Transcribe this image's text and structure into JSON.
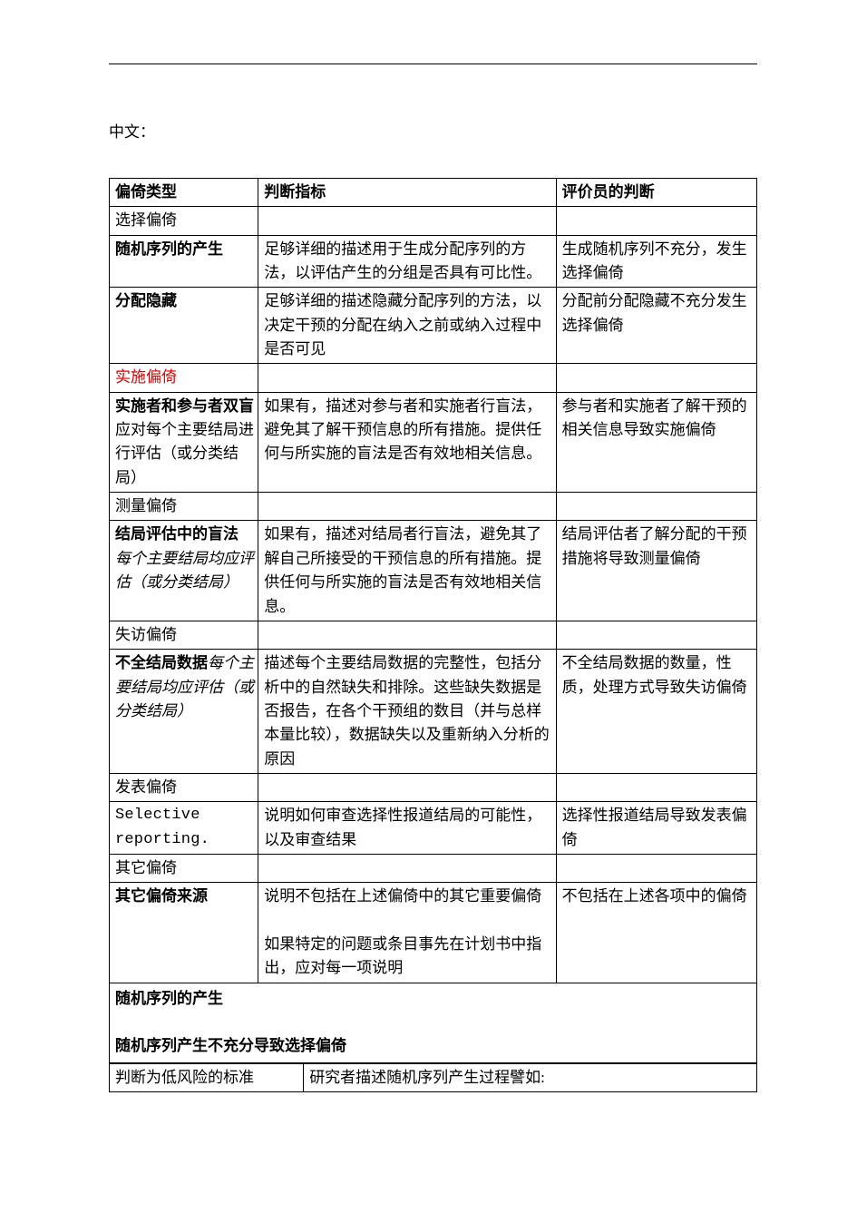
{
  "intro": "中文：",
  "table1": {
    "header": {
      "c1": "偏倚类型",
      "c2": "判断指标",
      "c3": "评价员的判断"
    },
    "r_select": "选择偏倚",
    "r_rand": {
      "c1": "随机序列的产生",
      "c2": "足够详细的描述用于生成分配序列的方法，以评估产生的分组是否具有可比性。",
      "c3": "生成随机序列不充分，发生选择偏倚"
    },
    "r_alloc": {
      "c1": "分配隐藏",
      "c2": "足够详细的描述隐藏分配序列的方法，以决定干预的分配在纳入之前或纳入过程中是否可见",
      "c3": "分配前分配隐藏不充分发生选择偏倚"
    },
    "r_perf": "实施偏倚",
    "r_blind1": {
      "c1a": "实施者和参与者双盲",
      "c1b": " 应对每个主要结局进行评估（或分类结局）",
      "c2": "如果有，描述对参与者和实施者行盲法，避免其了解干预信息的所有措施。提供任何与所实施的盲法是否有效地相关信息。",
      "c3": "参与者和实施者了解干预的相关信息导致实施偏倚"
    },
    "r_detect": "测量偏倚",
    "r_blind2": {
      "c1a": "结局评估中的盲法",
      "c1b": " 每个主要结局均应评估（或分类结局）",
      "c2": "如果有，描述对结局者行盲法，避免其了解自己所接受的干预信息的所有措施。提供任何与所实施的盲法是否有效地相关信息。",
      "c3": "结局评估者了解分配的干预措施将导致测量偏倚"
    },
    "r_attr": "失访偏倚",
    "r_incomp": {
      "c1a": "不全结局数据",
      "c1b": "每个主要结局均应评估（或分类结局）",
      "c2": "描述每个主要结局数据的完整性，包括分析中的自然缺失和排除。这些缺失数据是否报告，在各个干预组的数目（并与总样本量比较），数据缺失以及重新纳入分析的原因",
      "c3": "不全结局数据的数量，性质，处理方式导致失访偏倚"
    },
    "r_report": "发表偏倚",
    "r_selective": {
      "c1a": "Selective",
      "c1b": "reporting.",
      "c2": "说明如何审查选择性报道结局的可能性，以及审查结果",
      "c3": "选择性报道结局导致发表偏倚"
    },
    "r_other": "其它偏倚",
    "r_other_src": {
      "c1": "其它偏倚来源",
      "c2a": "说明不包括在上述偏倚中的其它重要偏倚",
      "c2b": "如果特定的问题或条目事先在计划书中指出，应对每一项说明",
      "c3": "不包括在上述各项中的偏倚"
    },
    "full_heading1": "随机序列的产生",
    "full_heading2": "随机序列产生不充分导致选择偏倚"
  },
  "table2": {
    "r1c1": "判断为低风险的标准",
    "r1c2": "研究者描述随机序列产生过程譬如:"
  }
}
